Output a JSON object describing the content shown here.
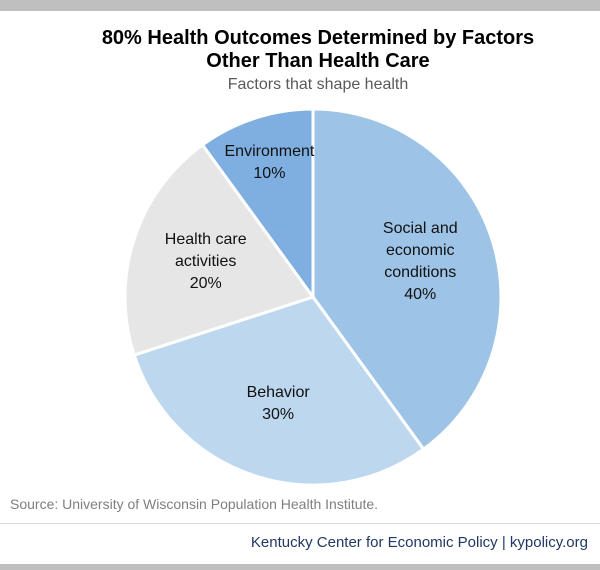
{
  "chart_data": {
    "type": "pie",
    "title": "80% Health Outcomes Determined by Factors Other Than Health Care",
    "subtitle": "Factors that shape health",
    "categories": [
      "Social and economic conditions",
      "Behavior",
      "Health care activities",
      "Environment"
    ],
    "values": [
      40,
      30,
      20,
      10
    ],
    "value_labels": [
      "40%",
      "30%",
      "20%",
      "10%"
    ],
    "colors": [
      "#9dc3e6",
      "#bdd7ee",
      "#e7e6e6",
      "#7fafe0"
    ],
    "source": "Source: University of Wisconsin Population Health Institute.",
    "footer": "Kentucky Center for Economic Policy | kypolicy.org"
  }
}
